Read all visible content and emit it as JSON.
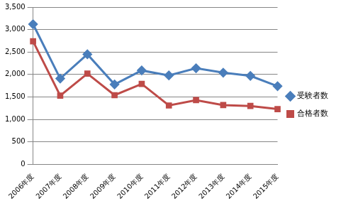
{
  "chart_data": {
    "type": "line",
    "categories": [
      "2006年度",
      "2007年度",
      "2008年度",
      "2009年度",
      "2010年度",
      "2011年度",
      "2012年度",
      "2013年度",
      "2014年度",
      "2015年度"
    ],
    "series": [
      {
        "name": "受験者数",
        "color": "#4a7ebb",
        "marker": "diamond",
        "values": [
          3120,
          1910,
          2450,
          1780,
          2090,
          1980,
          2140,
          2040,
          1970,
          1740
        ]
      },
      {
        "name": "合格者数",
        "color": "#be4b48",
        "marker": "square",
        "values": [
          2740,
          1530,
          2020,
          1540,
          1790,
          1310,
          1430,
          1320,
          1300,
          1230
        ]
      }
    ],
    "ylim": [
      0,
      3500
    ],
    "yticks": [
      0,
      500,
      {
        "value": 1000,
        "label": "1,000"
      },
      {
        "value": 1500,
        "label": "1,500"
      },
      {
        "value": 2000,
        "label": "2,000"
      },
      {
        "value": 2500,
        "label": "2,500"
      },
      {
        "value": 3000,
        "label": "3,000"
      },
      {
        "value": 3500,
        "label": "3,500"
      }
    ],
    "grid": true,
    "legend": "right"
  }
}
